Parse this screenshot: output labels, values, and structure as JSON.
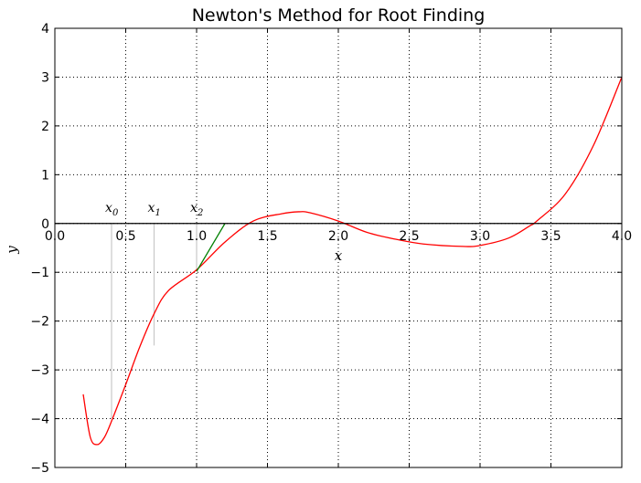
{
  "chart_data": {
    "type": "line",
    "title": "Newton's Method for Root Finding",
    "xlabel": "x",
    "ylabel": "y",
    "xlim": [
      0.0,
      4.0
    ],
    "ylim": [
      -5,
      4
    ],
    "grid": true,
    "x_ticks": [
      "0.0",
      "0.5",
      "1.0",
      "1.5",
      "2.0",
      "2.5",
      "3.0",
      "3.5",
      "4.0"
    ],
    "y_ticks": [
      "−5",
      "−4",
      "−3",
      "−2",
      "−1",
      "0",
      "1",
      "2",
      "3",
      "4"
    ],
    "series": [
      {
        "style": "function-curve",
        "color": "#ff0000",
        "x": [
          0.2,
          0.25,
          0.3,
          0.35,
          0.4,
          0.5,
          0.6,
          0.7,
          0.8,
          1.0,
          1.2,
          1.4,
          1.6,
          1.72,
          1.8,
          2.0,
          2.2,
          2.4,
          2.6,
          2.88,
          3.0,
          3.2,
          3.35,
          3.4,
          3.6,
          3.8,
          4.0
        ],
        "y": [
          -3.5,
          -4.38,
          -4.53,
          -4.38,
          -4.05,
          -3.3,
          -2.52,
          -1.85,
          -1.38,
          -0.95,
          -0.38,
          0.05,
          0.2,
          0.24,
          0.22,
          0.05,
          -0.18,
          -0.32,
          -0.42,
          -0.47,
          -0.45,
          -0.3,
          -0.05,
          0.05,
          0.6,
          1.6,
          3.0
        ]
      },
      {
        "style": "tangent-line",
        "color": "#008000",
        "x": [
          1.0,
          1.2
        ],
        "y": [
          -0.98,
          0.0
        ]
      }
    ],
    "iterations": [
      {
        "label": "x",
        "sub": "0",
        "x": 0.4,
        "y": -4.0
      },
      {
        "label": "x",
        "sub": "1",
        "x": 0.7,
        "y": -2.5
      },
      {
        "label": "x",
        "sub": "2",
        "x": 1.0,
        "y": -0.98
      }
    ],
    "colors": {
      "guide": "#c8c8c8",
      "axis": "#000000",
      "grid": "#000000"
    }
  }
}
